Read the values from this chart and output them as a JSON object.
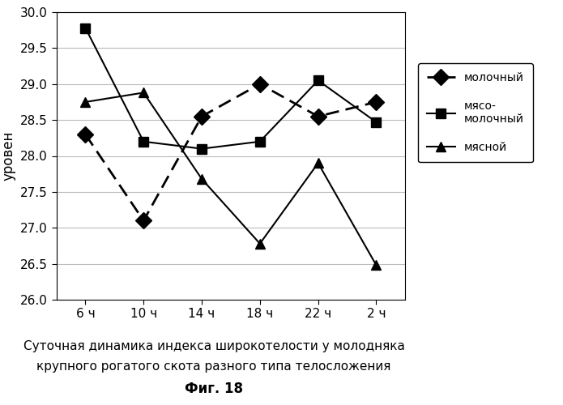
{
  "x_labels": [
    "6 ч",
    "10 ч",
    "14 ч",
    "18 ч",
    "22 ч",
    "2 ч"
  ],
  "x_positions": [
    0,
    1,
    2,
    3,
    4,
    5
  ],
  "molochny": [
    28.3,
    27.1,
    28.55,
    29.0,
    28.55,
    28.75
  ],
  "myaso_molochny": [
    29.78,
    28.2,
    28.1,
    28.2,
    29.05,
    28.47
  ],
  "myasnoy": [
    28.75,
    28.88,
    27.68,
    26.78,
    27.9,
    26.48
  ],
  "ylim": [
    26.0,
    30.0
  ],
  "yticks": [
    26.0,
    26.5,
    27.0,
    27.5,
    28.0,
    28.5,
    29.0,
    29.5,
    30.0
  ],
  "ylabel": "уровен",
  "legend_labels": [
    "молочный",
    "мясо-\nмолочный",
    "мясной"
  ],
  "caption_line1": "Суточная динамика индекса широкотелости у молодняка",
  "caption_line2": "крупного рогатого скота разного типа телосложения",
  "caption_fig": "Фиг. 18",
  "bg_color": "#ffffff",
  "grid_color": "#bbbbbb",
  "line_color": "#000000"
}
